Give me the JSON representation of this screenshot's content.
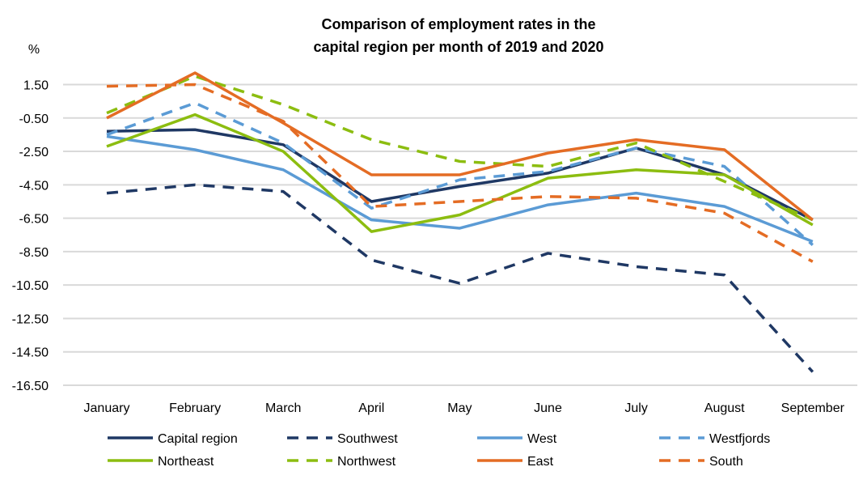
{
  "chart_data": {
    "type": "line",
    "title": [
      "Comparison of employment rates in the",
      "capital region per month of 2019 and 2020"
    ],
    "ylabel": "%",
    "xlabel": "",
    "categories": [
      "January",
      "February",
      "March",
      "April",
      "May",
      "June",
      "July",
      "August",
      "September"
    ],
    "yticks": [
      "1.50",
      "-0.50",
      "-2.50",
      "-4.50",
      "-6.50",
      "-8.50",
      "-10.50",
      "-12.50",
      "-14.50",
      "-16.50"
    ],
    "ylim": [
      -16.5,
      1.5
    ],
    "grid": true,
    "legend_position": "bottom",
    "series": [
      {
        "name": "Capital region",
        "color": "#1f3864",
        "dashed": false,
        "values": [
          -1.3,
          -1.2,
          -2.1,
          -5.5,
          -4.6,
          -3.8,
          -2.3,
          -3.9,
          -6.6
        ]
      },
      {
        "name": "Southwest",
        "color": "#1f3864",
        "dashed": true,
        "values": [
          -5.0,
          -4.5,
          -4.9,
          -9.0,
          -10.4,
          -8.6,
          -9.4,
          -9.9,
          -15.7
        ]
      },
      {
        "name": "West",
        "color": "#5b9bd5",
        "dashed": false,
        "values": [
          -1.6,
          -2.4,
          -3.6,
          -6.6,
          -7.1,
          -5.7,
          -5.0,
          -5.8,
          -7.9
        ]
      },
      {
        "name": "Westfjords",
        "color": "#5b9bd5",
        "dashed": true,
        "values": [
          -1.5,
          0.4,
          -2.0,
          -5.9,
          -4.2,
          -3.7,
          -2.3,
          -3.4,
          -8.1
        ]
      },
      {
        "name": "Northeast",
        "color": "#8cbd10",
        "dashed": false,
        "values": [
          -2.2,
          -0.3,
          -2.5,
          -7.3,
          -6.3,
          -4.1,
          -3.6,
          -3.9,
          -6.9
        ]
      },
      {
        "name": "Northwest",
        "color": "#8cbd10",
        "dashed": true,
        "values": [
          -0.2,
          2.0,
          0.3,
          -1.8,
          -3.1,
          -3.4,
          -2.0,
          -4.3,
          -6.6
        ]
      },
      {
        "name": "East",
        "color": "#e46c24",
        "dashed": false,
        "values": [
          -0.5,
          2.2,
          -0.8,
          -3.9,
          -3.9,
          -2.6,
          -1.8,
          -2.4,
          -6.6
        ]
      },
      {
        "name": "South",
        "color": "#e46c24",
        "dashed": true,
        "values": [
          1.4,
          1.5,
          -0.7,
          -5.8,
          -5.5,
          -5.2,
          -5.3,
          -6.2,
          -9.1
        ]
      }
    ]
  }
}
